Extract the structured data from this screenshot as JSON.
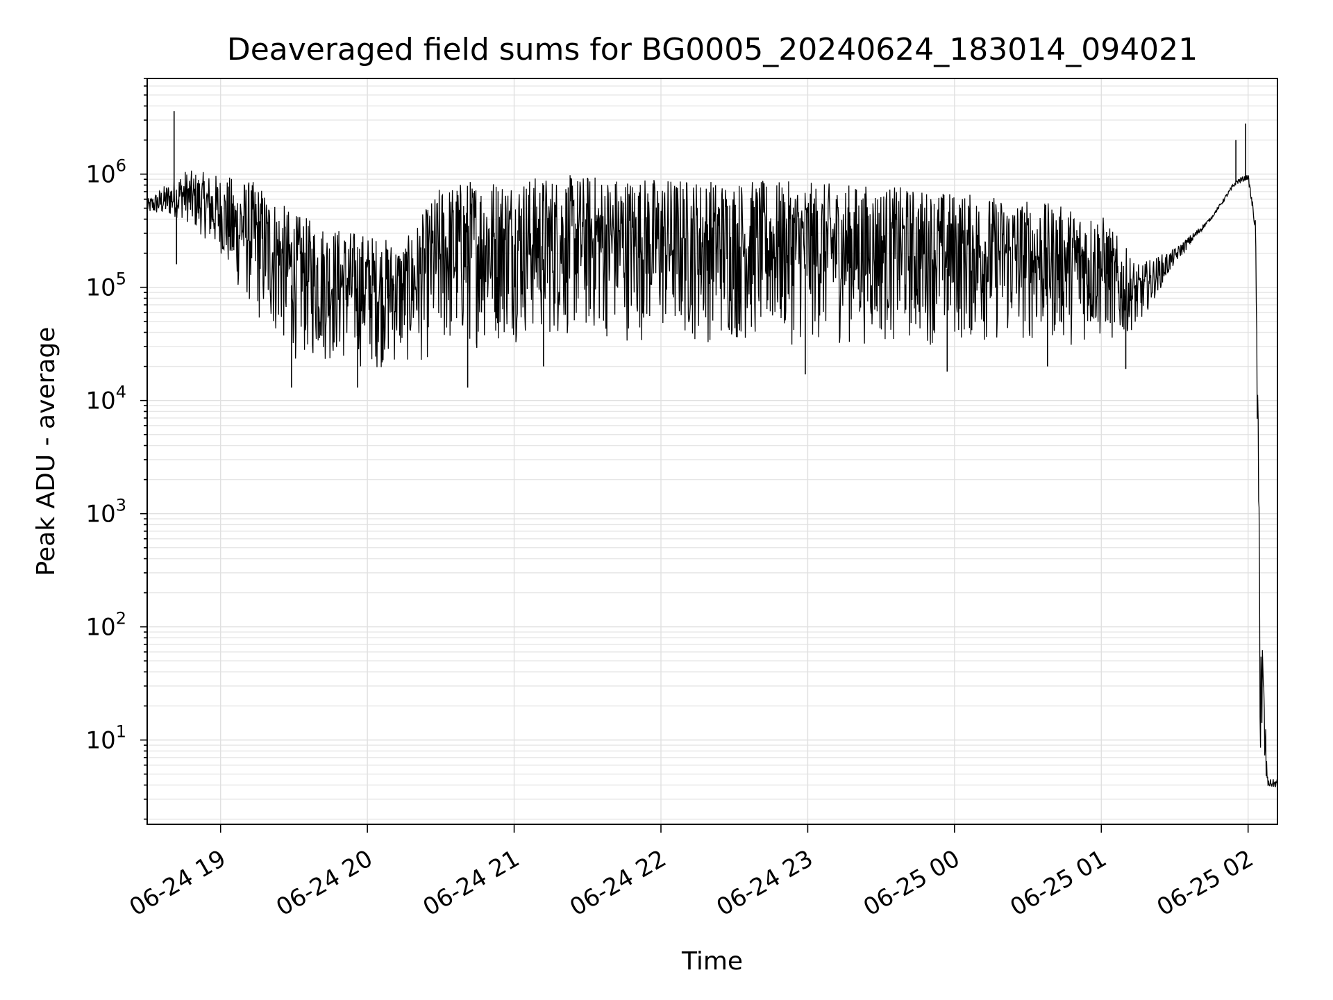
{
  "chart_data": {
    "type": "line",
    "title": "Deaveraged field sums for BG0005_20240624_183014_094021",
    "xlabel": "Time",
    "ylabel": "Peak ADU - average",
    "yscale": "log",
    "grid": true,
    "ylim": [
      1.8,
      7000000
    ],
    "xlim": [
      "2024-06-24 18:30",
      "2024-06-25 02:12"
    ],
    "x_ticks": [
      "06-24 19",
      "06-24 20",
      "06-24 21",
      "06-24 22",
      "06-24 23",
      "06-25 00",
      "06-25 01",
      "06-25 02"
    ],
    "y_ticks": [
      {
        "base": "10",
        "exp": "1",
        "value": 10
      },
      {
        "base": "10",
        "exp": "2",
        "value": 100
      },
      {
        "base": "10",
        "exp": "3",
        "value": 1000
      },
      {
        "base": "10",
        "exp": "4",
        "value": 10000
      },
      {
        "base": "10",
        "exp": "5",
        "value": 100000
      },
      {
        "base": "10",
        "exp": "6",
        "value": 1000000
      }
    ],
    "line_color": "#000000",
    "series": [
      {
        "envelope": {
          "x": [
            "2024-06-24 18:30",
            "2024-06-24 18:45",
            "2024-06-24 19:00",
            "2024-06-24 19:15",
            "2024-06-24 19:30",
            "2024-06-24 19:45",
            "2024-06-24 20:00",
            "2024-06-24 20:15",
            "2024-06-24 20:30",
            "2024-06-24 20:45",
            "2024-06-24 21:00",
            "2024-06-24 21:30",
            "2024-06-24 22:00",
            "2024-06-24 22:30",
            "2024-06-24 23:00",
            "2024-06-24 23:30",
            "2024-06-25 00:00",
            "2024-06-25 00:30",
            "2024-06-25 01:00",
            "2024-06-25 01:15",
            "2024-06-25 01:30",
            "2024-06-25 01:45",
            "2024-06-25 01:55",
            "2024-06-25 02:00",
            "2024-06-25 02:03",
            "2024-06-25 02:05",
            "2024-06-25 02:08",
            "2024-06-25 02:12"
          ],
          "upper": [
            600000,
            1100000,
            1000000,
            850000,
            450000,
            350000,
            300000,
            250000,
            800000,
            950000,
            950000,
            1000000,
            950000,
            900000,
            850000,
            800000,
            700000,
            600000,
            450000,
            160000,
            220000,
            420000,
            900000,
            1000000,
            400000,
            300,
            4.5,
            4.5
          ],
          "lower": [
            450000,
            400000,
            200000,
            45000,
            22000,
            20000,
            18000,
            19000,
            22000,
            28000,
            32000,
            33000,
            32000,
            30000,
            30000,
            30000,
            30000,
            30000,
            30000,
            45000,
            160000,
            400000,
            800000,
            900000,
            300000,
            4,
            3.8,
            3.8
          ]
        },
        "spikes": [
          {
            "x": "2024-06-24 18:41",
            "y": 3600000
          },
          {
            "x": "2024-06-24 18:42",
            "y": 160000
          },
          {
            "x": "2024-06-24 19:29",
            "y": 13000
          },
          {
            "x": "2024-06-24 19:56",
            "y": 13000
          },
          {
            "x": "2024-06-24 20:41",
            "y": 13000
          },
          {
            "x": "2024-06-24 21:12",
            "y": 20000
          },
          {
            "x": "2024-06-24 22:59",
            "y": 17000
          },
          {
            "x": "2024-06-24 23:57",
            "y": 18000
          },
          {
            "x": "2024-06-25 00:38",
            "y": 20000
          },
          {
            "x": "2024-06-25 01:10",
            "y": 19000
          },
          {
            "x": "2024-06-25 01:55",
            "y": 2000000
          },
          {
            "x": "2024-06-25 01:59",
            "y": 2800000
          }
        ]
      }
    ]
  }
}
